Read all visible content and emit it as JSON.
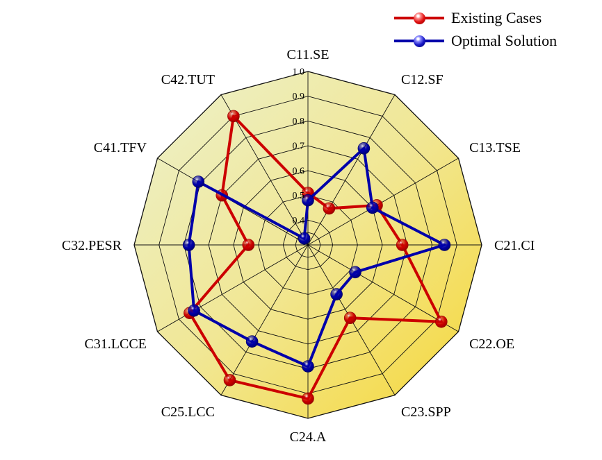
{
  "legend": {
    "items": [
      {
        "label": "Existing Cases"
      },
      {
        "label": "Optimal Solution"
      }
    ]
  },
  "chart_data": {
    "type": "radar",
    "categories": [
      "C11.SE",
      "C12.SF",
      "C13.TSE",
      "C21.CI",
      "C22.OE",
      "C23.SPP",
      "C24.A",
      "C25.LCC",
      "C31.LCCE",
      "C32.PESR",
      "C41.TFV",
      "C42.TUT"
    ],
    "series": [
      {
        "name": "Existing Cases",
        "color": "#cc0000",
        "dark": "#8f0000",
        "values": [
          0.51,
          0.47,
          0.62,
          0.68,
          0.92,
          0.64,
          0.92,
          0.93,
          0.85,
          0.54,
          0.7,
          0.9
        ]
      },
      {
        "name": "Optimal Solution",
        "color": "#0000aa",
        "dark": "#000060",
        "values": [
          0.48,
          0.75,
          0.6,
          0.85,
          0.52,
          0.53,
          0.79,
          0.75,
          0.83,
          0.78,
          0.81,
          0.33
        ]
      }
    ],
    "radial_axis": {
      "min": 0.3,
      "max": 1.0,
      "tick_step": 0.1,
      "tick_labels": [
        "0.4",
        "0.5",
        "0.6",
        "0.7",
        "0.8",
        "0.9",
        "1.0"
      ]
    },
    "grid": true,
    "legend_position": "top-right",
    "colors": {
      "grid_line": "#111111",
      "label_text": "#000000",
      "fill_gradient_start": "#ecf1cd",
      "fill_gradient_mid": "#f1e795",
      "fill_gradient_end": "#f6d736"
    }
  }
}
